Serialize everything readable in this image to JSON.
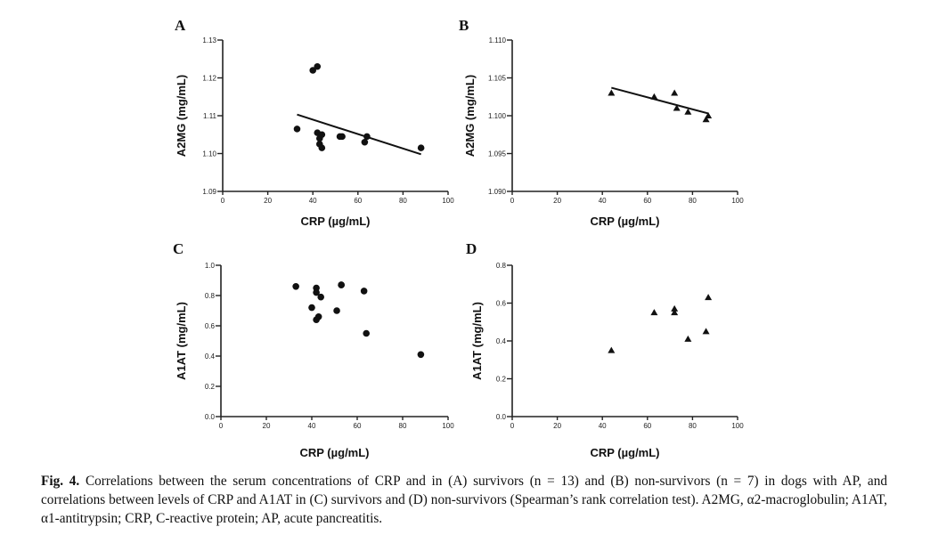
{
  "chart_data": [
    {
      "panel": "A",
      "type": "scatter",
      "marker": "circle",
      "xlabel": "CRP (µg/mL)",
      "ylabel": "A2MG (mg/mL)",
      "xlim": [
        0,
        100
      ],
      "ylim": [
        1.09,
        1.13
      ],
      "xticks": [
        "0",
        "20",
        "40",
        "60",
        "80",
        "100"
      ],
      "yticks": [
        "1.09",
        "1.10",
        "1.11",
        "1.12",
        "1.13"
      ],
      "points": [
        [
          33,
          1.1065
        ],
        [
          40,
          1.122
        ],
        [
          42,
          1.123
        ],
        [
          42,
          1.1055
        ],
        [
          43,
          1.104
        ],
        [
          43,
          1.1025
        ],
        [
          44,
          1.105
        ],
        [
          44,
          1.1015
        ],
        [
          52,
          1.1045
        ],
        [
          53,
          1.1045
        ],
        [
          63,
          1.103
        ],
        [
          64,
          1.1045
        ],
        [
          88,
          1.1015
        ]
      ],
      "fit_line": [
        [
          33,
          1.1103
        ],
        [
          88,
          1.0998
        ]
      ]
    },
    {
      "panel": "B",
      "type": "scatter",
      "marker": "triangle",
      "xlabel": "CRP (µg/mL)",
      "ylabel": "A2MG (mg/mL)",
      "xlim": [
        0,
        100
      ],
      "ylim": [
        1.09,
        1.11
      ],
      "xticks": [
        "0",
        "20",
        "40",
        "60",
        "80",
        "100"
      ],
      "yticks": [
        "1.090",
        "1.095",
        "1.100",
        "1.105",
        "1.110"
      ],
      "points": [
        [
          44,
          1.103
        ],
        [
          63,
          1.1025
        ],
        [
          72,
          1.103
        ],
        [
          73,
          1.101
        ],
        [
          78,
          1.1005
        ],
        [
          86,
          1.0995
        ],
        [
          87,
          1.1
        ]
      ],
      "fit_line": [
        [
          44,
          1.1037
        ],
        [
          87,
          1.1003
        ]
      ]
    },
    {
      "panel": "C",
      "type": "scatter",
      "marker": "circle",
      "xlabel": "CRP (µg/mL)",
      "ylabel": "A1AT (mg/mL)",
      "xlim": [
        0,
        100
      ],
      "ylim": [
        0.0,
        1.0
      ],
      "xticks": [
        "0",
        "20",
        "40",
        "60",
        "80",
        "100"
      ],
      "yticks": [
        "0.0",
        "0.2",
        "0.4",
        "0.6",
        "0.8",
        "1.0"
      ],
      "points": [
        [
          33,
          0.86
        ],
        [
          40,
          0.72
        ],
        [
          42,
          0.85
        ],
        [
          42,
          0.82
        ],
        [
          42,
          0.64
        ],
        [
          43,
          0.66
        ],
        [
          44,
          0.79
        ],
        [
          51,
          0.7
        ],
        [
          53,
          0.87
        ],
        [
          53,
          0.87
        ],
        [
          63,
          0.83
        ],
        [
          64,
          0.55
        ],
        [
          88,
          0.41
        ]
      ]
    },
    {
      "panel": "D",
      "type": "scatter",
      "marker": "triangle",
      "xlabel": "CRP (µg/mL)",
      "ylabel": "A1AT (mg/mL)",
      "xlim": [
        0,
        100
      ],
      "ylim": [
        0.0,
        0.8
      ],
      "xticks": [
        "0",
        "20",
        "40",
        "60",
        "80",
        "100"
      ],
      "yticks": [
        "0.0",
        "0.2",
        "0.4",
        "0.6",
        "0.8"
      ],
      "points": [
        [
          44,
          0.35
        ],
        [
          63,
          0.55
        ],
        [
          72,
          0.55
        ],
        [
          72,
          0.57
        ],
        [
          78,
          0.41
        ],
        [
          86,
          0.45
        ],
        [
          87,
          0.63
        ]
      ]
    }
  ],
  "caption": {
    "fig_label": "Fig. 4.",
    "text": "Correlations between the serum concentrations of CRP and in (A) survivors (n = 13) and (B) non-survivors (n = 7) in dogs with AP, and correlations between levels of CRP and A1AT in (C) survivors and (D) non-survivors (Spearman’s rank correlation test). A2MG, α2-macroglobulin; A1AT, α1-antitrypsin; CRP, C-reactive protein; AP, acute pancreatitis."
  }
}
